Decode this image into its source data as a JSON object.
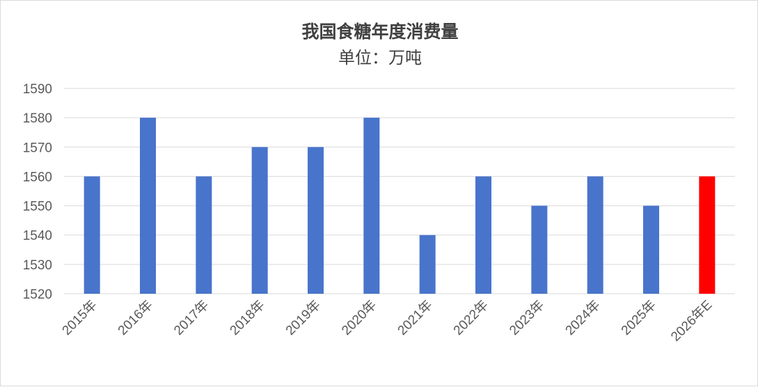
{
  "chart_data": {
    "type": "bar",
    "title": "我国食糖年度消费量",
    "subtitle": "单位：万吨",
    "categories": [
      "2015年",
      "2016年",
      "2017年",
      "2018年",
      "2019年",
      "2020年",
      "2021年",
      "2022年",
      "2023年",
      "2024年",
      "2025年",
      "2026年E"
    ],
    "values": [
      1560,
      1580,
      1560,
      1570,
      1570,
      1580,
      1540,
      1560,
      1550,
      1560,
      1550,
      1560
    ],
    "ylim": [
      1520,
      1590
    ],
    "yticks": [
      1520,
      1530,
      1540,
      1550,
      1560,
      1570,
      1580,
      1590
    ],
    "grid": true,
    "legend": "none",
    "colors": {
      "actual": "#4874CB",
      "estimate": "#FF0000"
    },
    "highlight_index": 11
  }
}
